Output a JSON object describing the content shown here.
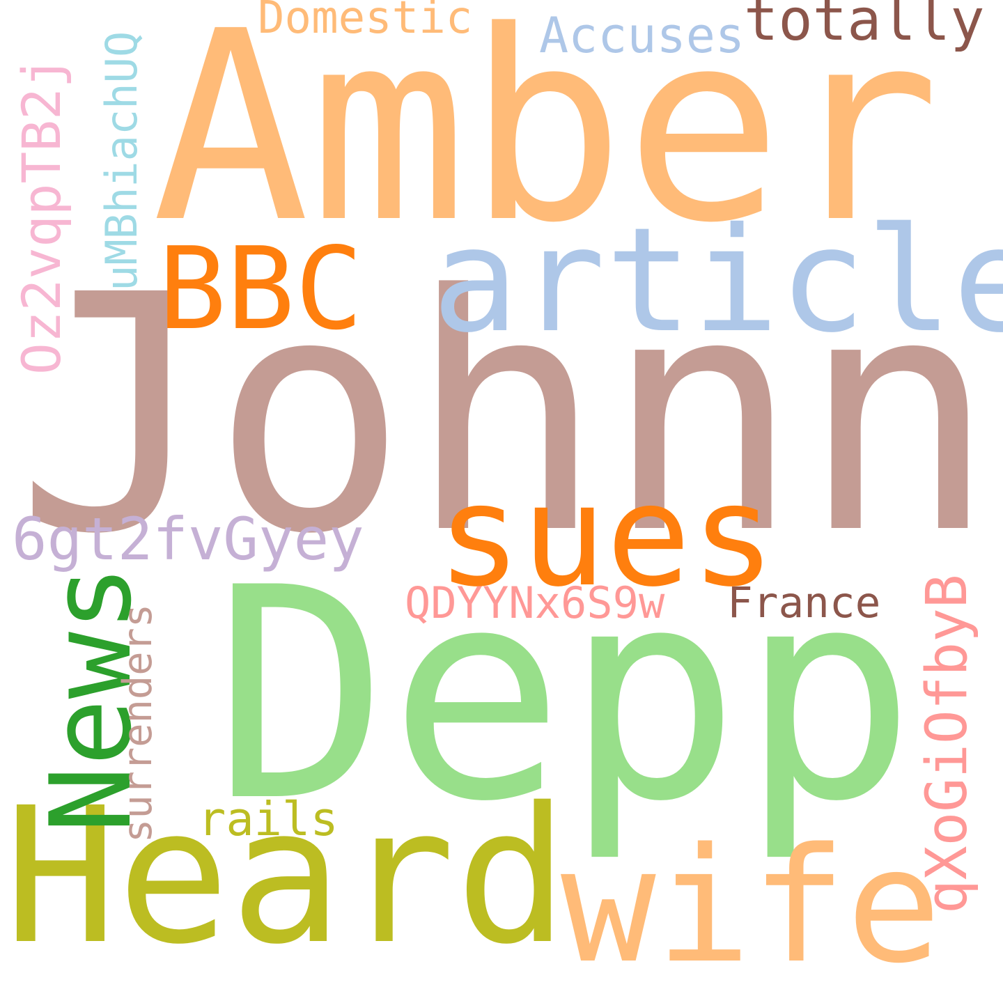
{
  "cloud": {
    "words": {
      "johnny": {
        "text": "Johnny",
        "color": "#c49c94"
      },
      "amber": {
        "text": "Amber",
        "color": "#ffbb78"
      },
      "depp": {
        "text": "Depp",
        "color": "#98df8a"
      },
      "heard": {
        "text": "Heard",
        "color": "#bcbd22"
      },
      "wife": {
        "text": "wife",
        "color": "#ffbb78"
      },
      "article": {
        "text": "article",
        "color": "#aec7e8"
      },
      "sues": {
        "text": "sues",
        "color": "#ff7f0e"
      },
      "bbc": {
        "text": "BBC",
        "color": "#ff7f0e"
      },
      "news": {
        "text": "News",
        "color": "#2ca02c"
      },
      "totally": {
        "text": "totally",
        "color": "#8c564b"
      },
      "6gt2": {
        "text": "6gt2fvGyey",
        "color": "#c5b0d5"
      },
      "qxogi": {
        "text": "qXoGiOfbyB",
        "color": "#ff9896"
      },
      "oz2v": {
        "text": "Oz2vqpTB2j",
        "color": "#f7b6d2"
      },
      "accuses": {
        "text": "Accuses",
        "color": "#aec7e8"
      },
      "domestic": {
        "text": "Domestic",
        "color": "#ffbb78"
      },
      "umbhiach": {
        "text": "uMBhiachUQ",
        "color": "#9edae5"
      },
      "rails": {
        "text": "rails",
        "color": "#bcbd22"
      },
      "surrenders": {
        "text": "surrenders",
        "color": "#c49c94"
      },
      "qdyy": {
        "text": "QDYYNx6S9w",
        "color": "#ff9896"
      },
      "france": {
        "text": "France",
        "color": "#8c564b"
      }
    }
  }
}
